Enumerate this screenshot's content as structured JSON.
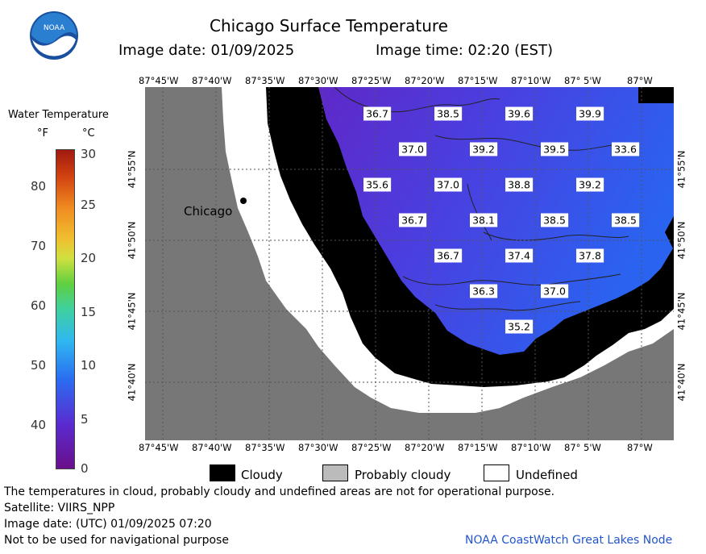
{
  "header": {
    "title": "Chicago Surface Temperature",
    "image_date": "Image date: 01/09/2025",
    "image_time": "Image time: 02:20 (EST)"
  },
  "logo": {
    "text": "NOAA"
  },
  "map": {
    "lon_labels_top": [
      "87°45'W",
      "87°40'W",
      "87°35'W",
      "87°30'W",
      "87°25'W",
      "87°20'W",
      "87°15'W",
      "87°10'W",
      "87° 5'W",
      "87°W"
    ],
    "lon_labels_bottom": [
      "87°45'W",
      "87°40'W",
      "87°35'W",
      "87°30'W",
      "87°25'W",
      "87°20'W",
      "87°15'W",
      "87°10'W",
      "87° 5'W",
      "87°W"
    ],
    "lat_labels_left": [
      "41°55'N",
      "41°50'N",
      "41°45'N",
      "41°40'N"
    ],
    "lat_labels_right": [
      "41°55'N",
      "41°50'N",
      "41°45'N",
      "41°40'N"
    ],
    "city_label": "Chicago",
    "temperatures": [
      {
        "value": "36.7"
      },
      {
        "value": "38.5"
      },
      {
        "value": "39.6"
      },
      {
        "value": "39.9"
      },
      {
        "value": "37.0"
      },
      {
        "value": "39.2"
      },
      {
        "value": "39.5"
      },
      {
        "value": "33.6"
      },
      {
        "value": "35.6"
      },
      {
        "value": "37.0"
      },
      {
        "value": "38.8"
      },
      {
        "value": "39.2"
      },
      {
        "value": "36.7"
      },
      {
        "value": "38.1"
      },
      {
        "value": "38.5"
      },
      {
        "value": "38.5"
      },
      {
        "value": "36.7"
      },
      {
        "value": "37.4"
      },
      {
        "value": "37.8"
      },
      {
        "value": "36.3"
      },
      {
        "value": "37.0"
      },
      {
        "value": "35.2"
      }
    ],
    "colors": {
      "land": "#777777",
      "cloud": "#000000",
      "undefined": "#ffffff",
      "water_cold": "#5a2bd0",
      "water_warm": "#2a5ff0"
    }
  },
  "colorbar": {
    "title": "Water Temperature",
    "unit_f": "°F",
    "unit_c": "°C",
    "f_ticks": [
      "80",
      "70",
      "60",
      "50",
      "40"
    ],
    "c_ticks": [
      "30",
      "25",
      "20",
      "15",
      "10",
      "5",
      "0"
    ]
  },
  "legend": {
    "cloudy": "Cloudy",
    "probably_cloudy": "Probably cloudy",
    "undefined": "Undefined"
  },
  "footer": {
    "disclaimer": "The temperatures in cloud, probably cloudy and undefined areas are not for operational purpose.",
    "satellite": "Satellite: VIIRS_NPP",
    "utc_date": "Image date: (UTC) 01/09/2025  07:20",
    "nav_warning": "Not to be used for navigational purpose",
    "credit": "NOAA CoastWatch Great Lakes Node"
  }
}
